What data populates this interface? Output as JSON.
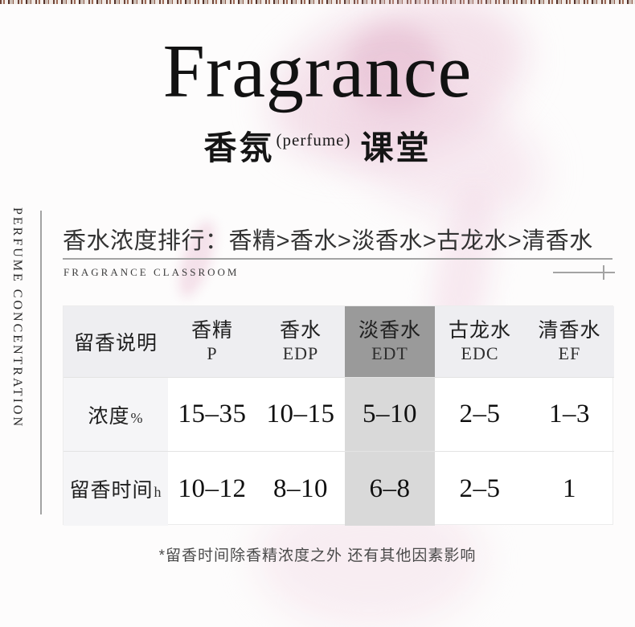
{
  "header": {
    "title": "Fragrance",
    "subtitle_cn_left": "香氛",
    "subtitle_annotation": "(perfume)",
    "subtitle_cn_right": "课堂"
  },
  "sidebar": {
    "vertical_label": "PERFUME CONCENTRATION"
  },
  "section": {
    "heading": "香水浓度排行：香精>香水>淡香水>古龙水>清香水",
    "subheading": "FRAGRANCE CLASSROOM"
  },
  "table": {
    "corner_label": "留香说明",
    "columns": [
      {
        "name": "香精",
        "abbr": "P"
      },
      {
        "name": "香水",
        "abbr": "EDP"
      },
      {
        "name": "淡香水",
        "abbr": "EDT"
      },
      {
        "name": "古龙水",
        "abbr": "EDC"
      },
      {
        "name": "清香水",
        "abbr": "EF"
      }
    ],
    "highlight_column": "淡香水 EDT",
    "rows": [
      {
        "label": "浓度",
        "unit": "%",
        "values": [
          "15–35",
          "10–15",
          "5–10",
          "2–5",
          "1–3"
        ]
      },
      {
        "label": "留香时间",
        "unit": "h",
        "values": [
          "10–12",
          "8–10",
          "6–8",
          "2–5",
          "1"
        ]
      }
    ]
  },
  "footnote": "*留香时间除香精浓度之外 还有其他因素影响",
  "colors": {
    "highlight_header_bg": "#9a9a9a",
    "highlight_cell_bg": "#d9d9d9",
    "header_row_bg": "#eeeef1",
    "label_col_bg": "#f5f5f7",
    "line_gray": "#a3a3a3",
    "text_dark": "#1c1c1c",
    "smoke_pink": "#eccadb"
  }
}
